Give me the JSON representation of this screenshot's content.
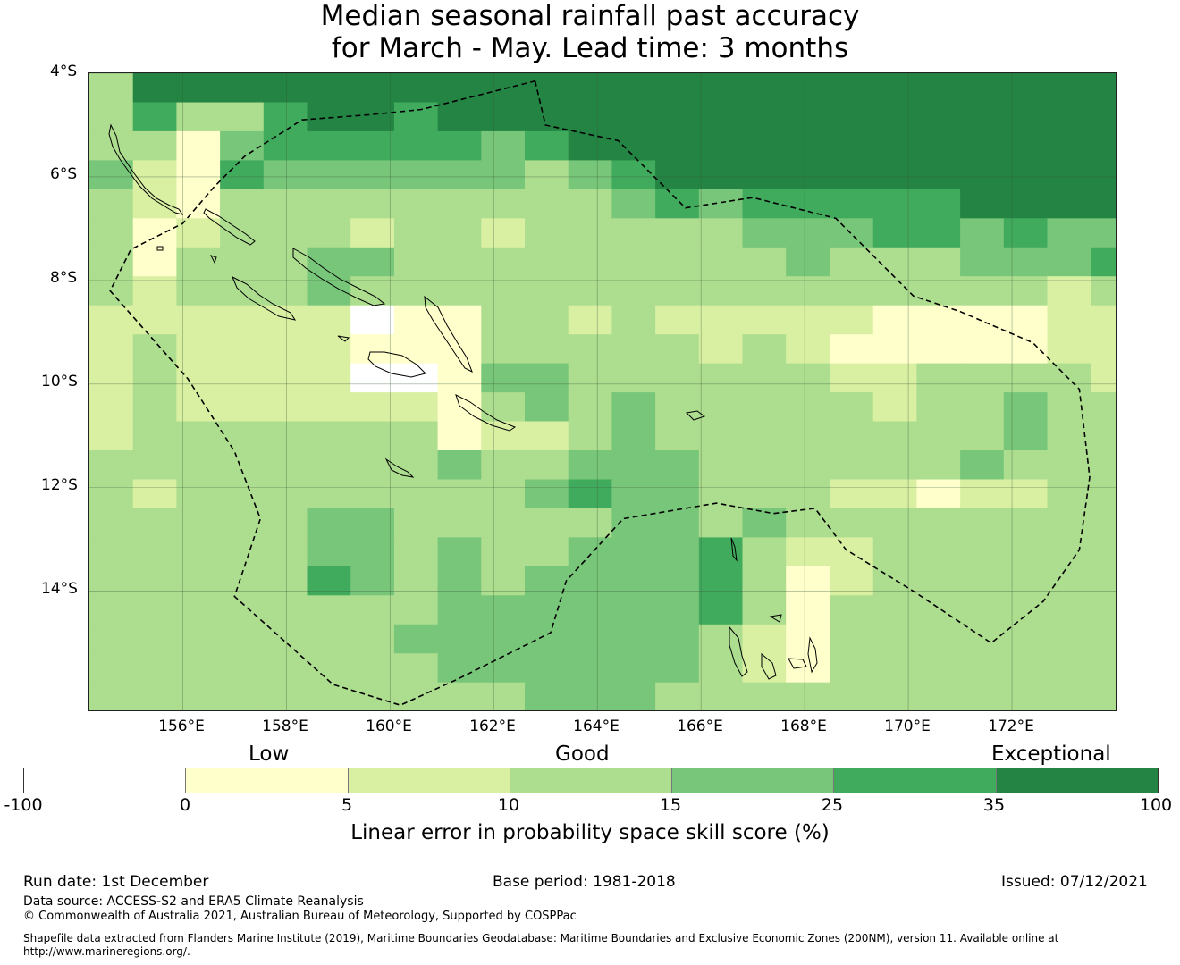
{
  "title": {
    "line1": "Median seasonal rainfall past accuracy",
    "line2": "for March - May. Lead time: 3 months"
  },
  "map": {
    "lat_labels": [
      "4°S",
      "6°S",
      "8°S",
      "10°S",
      "12°S",
      "14°S"
    ],
    "lon_labels": [
      "156°E",
      "158°E",
      "160°E",
      "162°E",
      "164°E",
      "166°E",
      "168°E",
      "170°E",
      "172°E"
    ],
    "lon_range": [
      154.2,
      174.0
    ],
    "lat_range": [
      -4.0,
      -16.3
    ],
    "grid_origin": {
      "lon": 154.2,
      "lat": -4.0
    },
    "cell_size_deg": {
      "lon": 0.84,
      "lat": 0.56
    },
    "skill_grid": [
      [
        3,
        6,
        6,
        6,
        6,
        6,
        6,
        6,
        6,
        6,
        6,
        6,
        6,
        6,
        6,
        6,
        6,
        6,
        6,
        6,
        6,
        6,
        6,
        6
      ],
      [
        3,
        5,
        3,
        3,
        5,
        6,
        6,
        5,
        6,
        6,
        6,
        6,
        6,
        6,
        6,
        6,
        6,
        6,
        6,
        6,
        6,
        6,
        6,
        6
      ],
      [
        3,
        3,
        1,
        4,
        5,
        5,
        5,
        5,
        5,
        4,
        5,
        6,
        6,
        6,
        6,
        6,
        6,
        6,
        6,
        6,
        6,
        6,
        6,
        6
      ],
      [
        4,
        2,
        1,
        5,
        4,
        4,
        4,
        4,
        4,
        4,
        3,
        4,
        5,
        6,
        6,
        6,
        6,
        6,
        6,
        6,
        6,
        6,
        6,
        6
      ],
      [
        3,
        2,
        1,
        3,
        3,
        3,
        3,
        3,
        3,
        3,
        3,
        3,
        4,
        5,
        4,
        5,
        5,
        5,
        5,
        5,
        6,
        6,
        6,
        6
      ],
      [
        3,
        1,
        2,
        3,
        3,
        3,
        2,
        3,
        3,
        2,
        3,
        3,
        3,
        3,
        3,
        4,
        4,
        4,
        5,
        5,
        4,
        5,
        4,
        4
      ],
      [
        3,
        1,
        3,
        3,
        3,
        4,
        4,
        3,
        3,
        3,
        3,
        3,
        3,
        3,
        3,
        3,
        4,
        3,
        3,
        3,
        4,
        4,
        4,
        5
      ],
      [
        3,
        2,
        3,
        3,
        3,
        4,
        3,
        3,
        3,
        3,
        3,
        3,
        3,
        3,
        3,
        3,
        3,
        3,
        3,
        3,
        3,
        3,
        2,
        3
      ],
      [
        2,
        2,
        2,
        2,
        2,
        2,
        0,
        1,
        1,
        3,
        3,
        2,
        3,
        2,
        2,
        2,
        2,
        2,
        1,
        1,
        1,
        1,
        2,
        2
      ],
      [
        2,
        3,
        2,
        2,
        2,
        2,
        1,
        1,
        1,
        3,
        3,
        3,
        3,
        3,
        2,
        3,
        2,
        1,
        1,
        1,
        1,
        1,
        2,
        2
      ],
      [
        2,
        3,
        2,
        2,
        2,
        2,
        0,
        0,
        1,
        4,
        4,
        3,
        3,
        3,
        3,
        3,
        3,
        2,
        2,
        3,
        3,
        3,
        3,
        2
      ],
      [
        2,
        3,
        2,
        2,
        2,
        2,
        2,
        2,
        1,
        3,
        4,
        3,
        4,
        3,
        3,
        3,
        3,
        3,
        2,
        3,
        3,
        4,
        3,
        3
      ],
      [
        2,
        3,
        3,
        3,
        3,
        3,
        3,
        3,
        1,
        2,
        2,
        3,
        4,
        3,
        3,
        3,
        3,
        3,
        3,
        3,
        3,
        4,
        3,
        3
      ],
      [
        3,
        3,
        3,
        3,
        3,
        3,
        3,
        3,
        4,
        3,
        3,
        4,
        4,
        4,
        3,
        3,
        3,
        3,
        3,
        3,
        4,
        3,
        3,
        3
      ],
      [
        3,
        2,
        3,
        3,
        3,
        3,
        3,
        3,
        3,
        3,
        4,
        5,
        4,
        4,
        3,
        3,
        3,
        2,
        2,
        1,
        2,
        2,
        3,
        3
      ],
      [
        3,
        3,
        3,
        3,
        3,
        4,
        4,
        3,
        3,
        3,
        3,
        3,
        4,
        4,
        3,
        4,
        3,
        3,
        3,
        3,
        3,
        3,
        3,
        3
      ],
      [
        3,
        3,
        3,
        3,
        3,
        4,
        4,
        3,
        4,
        3,
        3,
        4,
        4,
        4,
        5,
        3,
        2,
        2,
        3,
        3,
        3,
        3,
        3,
        3
      ],
      [
        3,
        3,
        3,
        3,
        3,
        5,
        4,
        3,
        4,
        3,
        4,
        4,
        4,
        4,
        5,
        3,
        1,
        2,
        3,
        3,
        3,
        3,
        3,
        3
      ],
      [
        3,
        3,
        3,
        3,
        3,
        3,
        3,
        3,
        4,
        4,
        4,
        4,
        4,
        4,
        5,
        3,
        1,
        3,
        3,
        3,
        3,
        3,
        3,
        3
      ],
      [
        3,
        3,
        3,
        3,
        3,
        3,
        3,
        4,
        4,
        4,
        4,
        4,
        4,
        4,
        3,
        2,
        1,
        3,
        3,
        3,
        3,
        3,
        3,
        3
      ],
      [
        3,
        3,
        3,
        3,
        3,
        3,
        3,
        3,
        4,
        4,
        4,
        4,
        4,
        4,
        3,
        2,
        1,
        3,
        3,
        3,
        3,
        3,
        3,
        3
      ],
      [
        3,
        3,
        3,
        3,
        3,
        3,
        3,
        3,
        3,
        3,
        4,
        4,
        4,
        3,
        3,
        3,
        3,
        3,
        3,
        3,
        3,
        3,
        3,
        3
      ]
    ],
    "eez_boundary": [
      [
        162.8,
        -4.15
      ],
      [
        163.0,
        -5.0
      ],
      [
        164.4,
        -5.3
      ],
      [
        165.7,
        -6.6
      ],
      [
        167.0,
        -6.4
      ],
      [
        168.6,
        -6.8
      ],
      [
        170.1,
        -8.3
      ],
      [
        171.0,
        -8.6
      ],
      [
        172.4,
        -9.2
      ],
      [
        173.3,
        -10.1
      ],
      [
        173.5,
        -11.8
      ],
      [
        173.3,
        -13.2
      ],
      [
        172.6,
        -14.2
      ],
      [
        171.6,
        -15.0
      ],
      [
        170.1,
        -14.0
      ],
      [
        168.8,
        -13.2
      ],
      [
        168.2,
        -12.4
      ],
      [
        167.4,
        -12.5
      ],
      [
        166.3,
        -12.3
      ],
      [
        164.5,
        -12.6
      ],
      [
        163.4,
        -13.8
      ],
      [
        163.1,
        -14.8
      ],
      [
        161.3,
        -15.7
      ],
      [
        160.2,
        -16.2
      ],
      [
        158.9,
        -15.8
      ],
      [
        157.0,
        -14.1
      ],
      [
        157.5,
        -12.6
      ],
      [
        157.0,
        -11.3
      ],
      [
        156.1,
        -9.9
      ],
      [
        154.6,
        -8.2
      ],
      [
        155.0,
        -7.4
      ],
      [
        156.0,
        -6.9
      ],
      [
        156.6,
        -6.2
      ],
      [
        157.2,
        -5.6
      ],
      [
        158.3,
        -4.9
      ],
      [
        159.6,
        -4.8
      ],
      [
        160.6,
        -4.7
      ],
      [
        162.8,
        -4.15
      ]
    ]
  },
  "legend": {
    "categories": [
      "Low",
      "Good",
      "Exceptional"
    ],
    "ticks": [
      "-100",
      "0",
      "5",
      "10",
      "15",
      "25",
      "35",
      "100"
    ],
    "colors": [
      "#ffffff",
      "#ffffcc",
      "#d9f0a3",
      "#addd8e",
      "#78c679",
      "#41ab5d",
      "#238443"
    ],
    "label": "Linear error in probability space skill score (%)"
  },
  "footer": {
    "run_date": "Run date: 1st December",
    "base_period": "Base period: 1981-2018",
    "issued": "Issued: 07/12/2021",
    "data_source": "Data source: ACCESS-S2 and ERA5 Climate Reanalysis",
    "copyright": "© Commonwealth of Australia 2021, Australian Bureau of Meteorology, Supported by COSPPac",
    "shapefile_1": "Shapefile data extracted from Flanders Marine Institute (2019), Maritime Boundaries Geodatabase: Maritime Boundaries and Exclusive Economic Zones (200NM), version 11. Available online at",
    "shapefile_2": "http://www.marineregions.org/."
  }
}
